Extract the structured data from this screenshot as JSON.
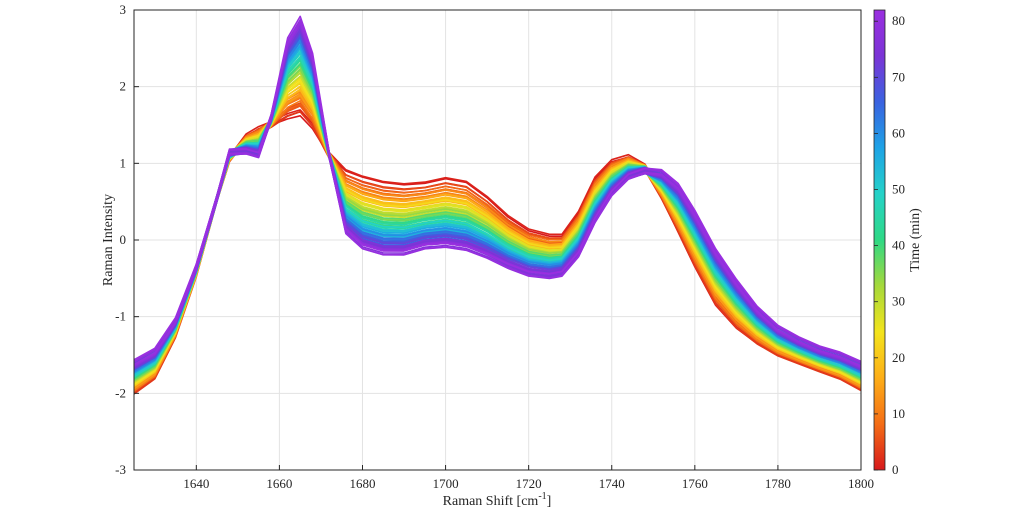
{
  "chart_data": {
    "type": "line",
    "xlabel": "Raman Shift [cm",
    "xlabel_superscript": "-1",
    "xlabel_suffix": "]",
    "ylabel": "Raman Intensity",
    "xlim": [
      1625,
      1800
    ],
    "ylim": [
      -3,
      3
    ],
    "x_ticks": [
      1640,
      1660,
      1680,
      1700,
      1720,
      1740,
      1760,
      1780,
      1800
    ],
    "y_ticks": [
      -3,
      -2,
      -1,
      0,
      1,
      2,
      3
    ],
    "grid": true,
    "colormap": "rainbow (red to violet)",
    "colorbar": {
      "label": "Time (min)",
      "range": [
        0,
        82
      ],
      "ticks": [
        0,
        10,
        20,
        30,
        40,
        50,
        60,
        70,
        80
      ],
      "colors": [
        "#d7191c",
        "#f46d16",
        "#fdae17",
        "#f3e41c",
        "#a6d93b",
        "#2fd985",
        "#25d2c8",
        "#1ea3e6",
        "#3a62e0",
        "#7b34d6",
        "#9a2fe0"
      ]
    },
    "series_profile": {
      "description_units": "Raman Shift (cm-1) vs Raman Intensity; spectra at start (t=0) and end (t=82 min)",
      "x": [
        1625,
        1630,
        1635,
        1640,
        1645,
        1648,
        1652,
        1655,
        1658,
        1662,
        1665,
        1668,
        1672,
        1676,
        1680,
        1685,
        1690,
        1695,
        1700,
        1705,
        1710,
        1715,
        1720,
        1725,
        1728,
        1732,
        1736,
        1740,
        1744,
        1748,
        1752,
        1756,
        1760,
        1765,
        1770,
        1775,
        1780,
        1785,
        1790,
        1795,
        1800
      ],
      "y_start": [
        -2.0,
        -1.8,
        -1.25,
        -0.45,
        0.55,
        1.05,
        1.35,
        1.45,
        1.5,
        1.58,
        1.62,
        1.45,
        1.1,
        0.9,
        0.82,
        0.75,
        0.72,
        0.74,
        0.8,
        0.75,
        0.55,
        0.3,
        0.12,
        0.05,
        0.05,
        0.35,
        0.8,
        1.02,
        1.08,
        0.95,
        0.55,
        0.1,
        -0.35,
        -0.85,
        -1.15,
        -1.35,
        -1.5,
        -1.6,
        -1.7,
        -1.8,
        -1.95
      ],
      "y_end": [
        -1.6,
        -1.45,
        -1.05,
        -0.35,
        0.55,
        1.15,
        1.15,
        1.1,
        1.6,
        2.6,
        2.88,
        2.4,
        1.1,
        0.1,
        -0.1,
        -0.18,
        -0.18,
        -0.1,
        -0.08,
        -0.12,
        -0.22,
        -0.35,
        -0.45,
        -0.48,
        -0.45,
        -0.2,
        0.25,
        0.6,
        0.82,
        0.9,
        0.88,
        0.7,
        0.35,
        -0.15,
        -0.55,
        -0.9,
        -1.15,
        -1.3,
        -1.42,
        -1.5,
        -1.62
      ]
    },
    "num_spectra": 83
  }
}
